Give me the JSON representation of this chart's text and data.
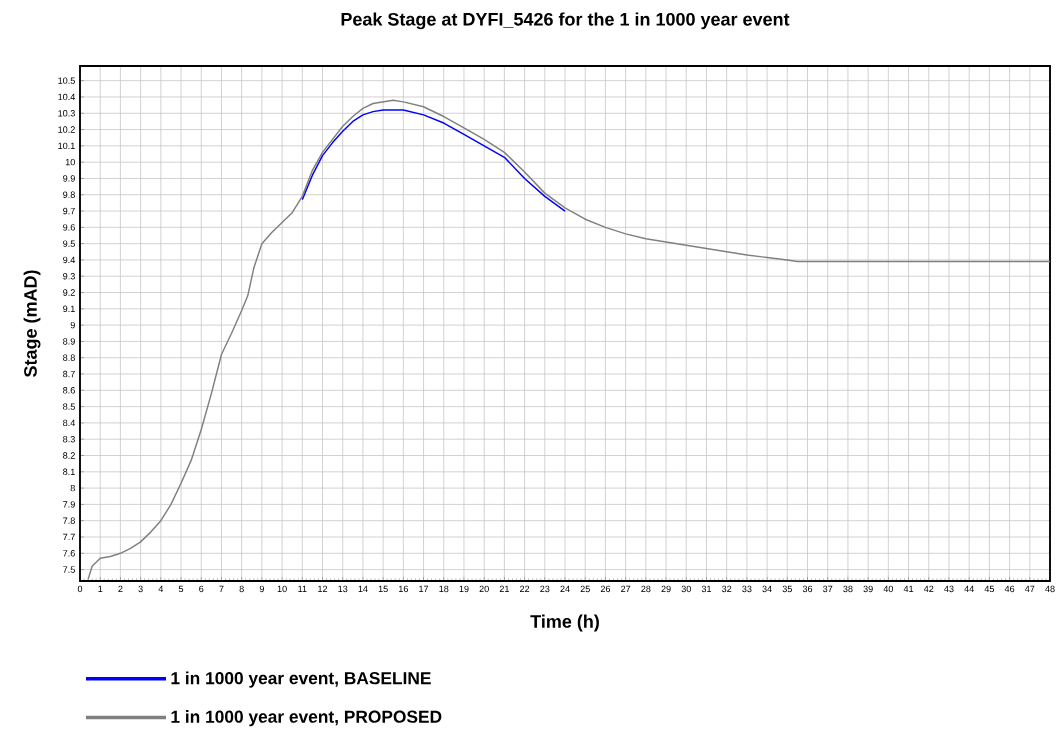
{
  "chart_data": {
    "type": "line",
    "title": "Peak Stage at DYFI_5426 for the 1 in 1000 year event",
    "xlabel": "Time (h)",
    "ylabel": "Stage (mAD)",
    "xlim": [
      0,
      48
    ],
    "ylim": [
      7.43,
      10.59
    ],
    "xticks": [
      0,
      1,
      2,
      3,
      4,
      5,
      6,
      7,
      8,
      9,
      10,
      11,
      12,
      13,
      14,
      15,
      16,
      17,
      18,
      19,
      20,
      21,
      22,
      23,
      24,
      25,
      26,
      27,
      28,
      29,
      30,
      31,
      32,
      33,
      34,
      35,
      36,
      37,
      38,
      39,
      40,
      41,
      42,
      43,
      44,
      45,
      46,
      47,
      48
    ],
    "yticks": [
      7.5,
      7.6,
      7.7,
      7.8,
      7.9,
      8,
      8.1,
      8.2,
      8.3,
      8.4,
      8.5,
      8.6,
      8.7,
      8.8,
      8.9,
      9,
      9.1,
      9.2,
      9.3,
      9.4,
      9.5,
      9.6,
      9.7,
      9.8,
      9.9,
      10,
      10.1,
      10.2,
      10.3,
      10.4,
      10.5
    ],
    "grid": true,
    "legend": "bottom",
    "series": [
      {
        "name": "1 in 1000 year event, BASELINE",
        "color": "#0000ff",
        "x": [
          11,
          11.5,
          12,
          12.5,
          13,
          13.5,
          14,
          14.5,
          15,
          15.5,
          16,
          17,
          18,
          19,
          20,
          21,
          22,
          23,
          24
        ],
        "values": [
          9.77,
          9.92,
          10.04,
          10.12,
          10.19,
          10.25,
          10.29,
          10.31,
          10.32,
          10.32,
          10.32,
          10.29,
          10.24,
          10.17,
          10.1,
          10.03,
          9.9,
          9.79,
          9.7
        ]
      },
      {
        "name": "1 in 1000 year event, PROPOSED",
        "color": "#808080",
        "x": [
          0.4,
          0.6,
          1,
          1.5,
          2,
          2.5,
          3,
          3.5,
          4,
          4.5,
          5,
          5.5,
          6,
          6.5,
          7,
          7.5,
          8,
          8.3,
          8.6,
          9,
          9.5,
          10,
          10.5,
          11,
          11.5,
          12,
          12.5,
          13,
          13.5,
          14,
          14.5,
          15,
          15.5,
          16,
          17,
          18,
          19,
          20,
          21,
          22,
          23,
          24,
          25,
          26,
          27,
          28,
          29,
          30,
          31,
          32,
          33,
          34,
          35,
          35.5,
          48
        ],
        "values": [
          7.44,
          7.52,
          7.57,
          7.58,
          7.6,
          7.63,
          7.67,
          7.73,
          7.8,
          7.9,
          8.03,
          8.17,
          8.36,
          8.58,
          8.82,
          8.95,
          9.09,
          9.18,
          9.35,
          9.5,
          9.57,
          9.63,
          9.69,
          9.79,
          9.95,
          10.06,
          10.14,
          10.22,
          10.28,
          10.33,
          10.36,
          10.37,
          10.38,
          10.37,
          10.34,
          10.28,
          10.21,
          10.14,
          10.06,
          9.94,
          9.81,
          9.72,
          9.65,
          9.6,
          9.56,
          9.53,
          9.51,
          9.49,
          9.47,
          9.45,
          9.43,
          9.415,
          9.4,
          9.39,
          9.39
        ]
      }
    ]
  }
}
